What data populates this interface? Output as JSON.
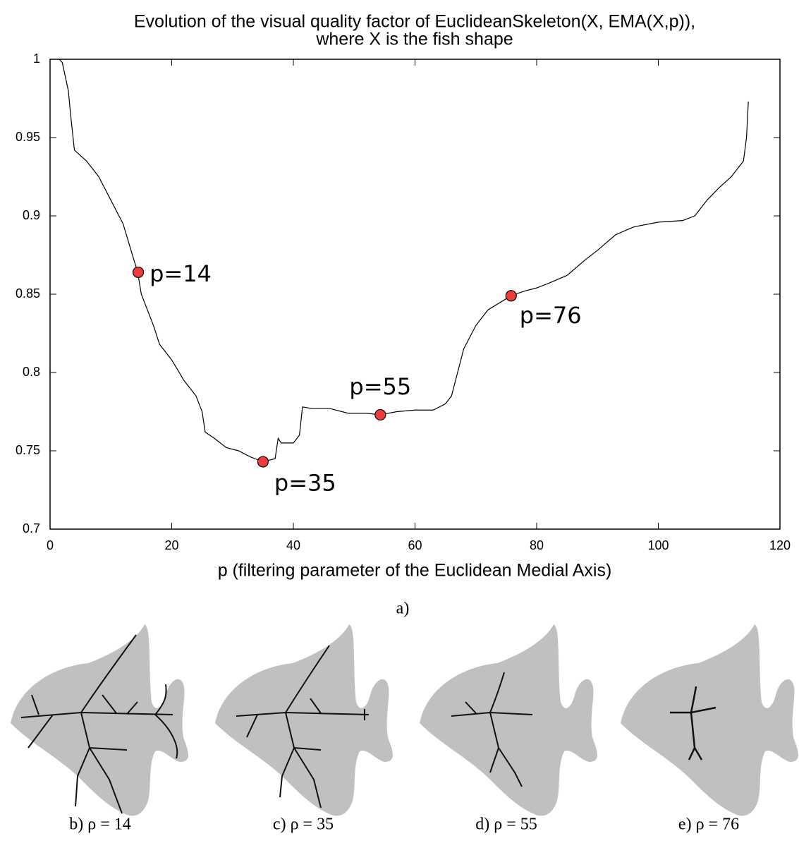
{
  "chart_data": {
    "type": "line",
    "title": "Evolution of the visual quality factor of EuclideanSkeleton(X, EMA(X,p)),",
    "subtitle": "where X is the fish shape",
    "x_label": "p (filtering parameter of the Euclidean Medial Axis)",
    "x": [
      1.5,
      2,
      3,
      3.5,
      4,
      6,
      8,
      10,
      12,
      13,
      14.4,
      15,
      16,
      17,
      18,
      20,
      22,
      24,
      25,
      25.5,
      27,
      29,
      31,
      33,
      35,
      37,
      37.5,
      38,
      40,
      41,
      41.5,
      43,
      46,
      49,
      52,
      54.3,
      57,
      60,
      63,
      65,
      66,
      67,
      68,
      70,
      72,
      75.8,
      78,
      80,
      82,
      85,
      88,
      90,
      93,
      96,
      100,
      104,
      106,
      108,
      110,
      112,
      114,
      114.5,
      114.8
    ],
    "series": [
      {
        "color": "#000000",
        "values": [
          1.0,
          0.998,
          0.98,
          0.96,
          0.942,
          0.935,
          0.925,
          0.91,
          0.895,
          0.882,
          0.864,
          0.85,
          0.84,
          0.83,
          0.818,
          0.808,
          0.795,
          0.785,
          0.775,
          0.762,
          0.758,
          0.752,
          0.75,
          0.746,
          0.743,
          0.745,
          0.758,
          0.755,
          0.755,
          0.76,
          0.778,
          0.777,
          0.777,
          0.774,
          0.774,
          0.773,
          0.775,
          0.776,
          0.776,
          0.78,
          0.785,
          0.8,
          0.815,
          0.83,
          0.84,
          0.849,
          0.852,
          0.854,
          0.857,
          0.862,
          0.872,
          0.878,
          0.888,
          0.893,
          0.896,
          0.897,
          0.9,
          0.91,
          0.918,
          0.925,
          0.935,
          0.95,
          0.973
        ]
      }
    ],
    "annotations": [
      {
        "text": "p=14",
        "x": 14.5,
        "y": 0.864
      },
      {
        "text": "p=35",
        "x": 35,
        "y": 0.743
      },
      {
        "text": "p=55",
        "x": 54.3,
        "y": 0.773
      },
      {
        "text": "p=76",
        "x": 75.8,
        "y": 0.849
      }
    ],
    "marker_color": "#ee3b3b",
    "xlim": [
      0,
      120
    ],
    "xticks": [
      0,
      20,
      40,
      60,
      80,
      100,
      120
    ],
    "ylim": [
      0.7,
      1
    ],
    "yticks": [
      0.7,
      0.75,
      0.8,
      0.85,
      0.9,
      0.95,
      1
    ],
    "grid": false
  },
  "figure": {
    "label": "a)",
    "panels": [
      {
        "caption": "b) ρ = 14"
      },
      {
        "caption": "c) ρ = 35"
      },
      {
        "caption": "d) ρ = 55"
      },
      {
        "caption": "e) ρ = 76"
      }
    ]
  }
}
